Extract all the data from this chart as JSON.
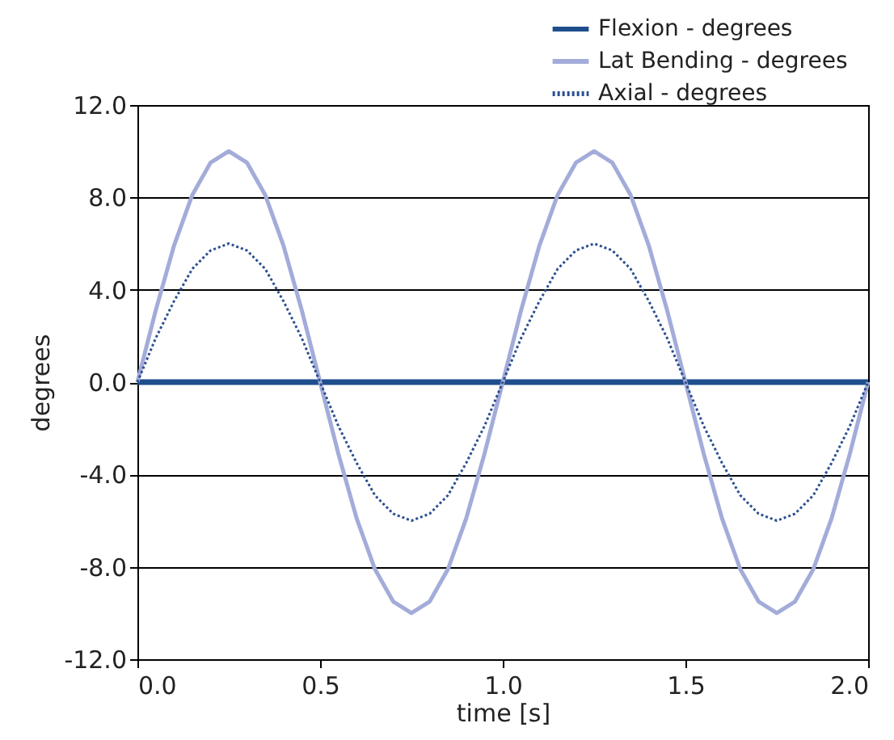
{
  "chart_data": {
    "type": "line",
    "xlabel": "time [s]",
    "ylabel": "degrees",
    "x": [
      0,
      0.05,
      0.1,
      0.15,
      0.2,
      0.25,
      0.3,
      0.35,
      0.4,
      0.45,
      0.5,
      0.55,
      0.6,
      0.65,
      0.7,
      0.75,
      0.8,
      0.85,
      0.9,
      0.95,
      1.0,
      1.05,
      1.1,
      1.15,
      1.2,
      1.25,
      1.3,
      1.35,
      1.4,
      1.45,
      1.5,
      1.55,
      1.6,
      1.65,
      1.7,
      1.75,
      1.8,
      1.85,
      1.9,
      1.95,
      2.0
    ],
    "series": [
      {
        "name": "Flexion - degrees",
        "color": "#1f4e8c",
        "line_style": "solid",
        "values": [
          0,
          0,
          0,
          0,
          0,
          0,
          0,
          0,
          0,
          0,
          0,
          0,
          0,
          0,
          0,
          0,
          0,
          0,
          0,
          0,
          0,
          0,
          0,
          0,
          0,
          0,
          0,
          0,
          0,
          0,
          0,
          0,
          0,
          0,
          0,
          0,
          0,
          0,
          0,
          0,
          0
        ]
      },
      {
        "name": "Lat Bending - degrees",
        "color": "#a3acd9",
        "line_style": "solid",
        "values": [
          0,
          3.1,
          5.9,
          8.1,
          9.5,
          10,
          9.5,
          8.1,
          5.9,
          3.1,
          0,
          -3.1,
          -5.9,
          -8.1,
          -9.5,
          -10,
          -9.5,
          -8.1,
          -5.9,
          -3.1,
          0,
          3.1,
          5.9,
          8.1,
          9.5,
          10,
          9.5,
          8.1,
          5.9,
          3.1,
          0,
          -3.1,
          -5.9,
          -8.1,
          -9.5,
          -10,
          -9.5,
          -8.1,
          -5.9,
          -3.1,
          0
        ]
      },
      {
        "name": "Axial - degrees",
        "color": "#2b4f8f",
        "line_style": "dotted",
        "values": [
          0,
          1.9,
          3.5,
          4.9,
          5.7,
          6,
          5.7,
          4.9,
          3.5,
          1.9,
          0,
          -1.9,
          -3.5,
          -4.9,
          -5.7,
          -6,
          -5.7,
          -4.9,
          -3.5,
          -1.9,
          0,
          1.9,
          3.5,
          4.9,
          5.7,
          6,
          5.7,
          4.9,
          3.5,
          1.9,
          0,
          -1.9,
          -3.5,
          -4.9,
          -5.7,
          -6,
          -5.7,
          -4.9,
          -3.5,
          -1.9,
          0
        ]
      }
    ],
    "xlim": [
      0,
      2.0
    ],
    "xticks": [
      {
        "value": 0,
        "label": "0.0"
      },
      {
        "value": 0.5,
        "label": "0.5"
      },
      {
        "value": 1,
        "label": "1.0"
      },
      {
        "value": 1.5,
        "label": "1.5"
      },
      {
        "value": 2,
        "label": "2.0"
      }
    ],
    "ylim": [
      -12,
      12
    ],
    "yticks": [
      {
        "value": -12,
        "label": "-12.0"
      },
      {
        "value": -8,
        "label": "-8.0"
      },
      {
        "value": -4,
        "label": "-4.0"
      },
      {
        "value": 0,
        "label": "0.0"
      },
      {
        "value": 4,
        "label": "4.0"
      },
      {
        "value": 8,
        "label": "8.0"
      },
      {
        "value": 12,
        "label": "12.0"
      }
    ],
    "grid": "y",
    "legend": "top right",
    "marker": "none"
  }
}
